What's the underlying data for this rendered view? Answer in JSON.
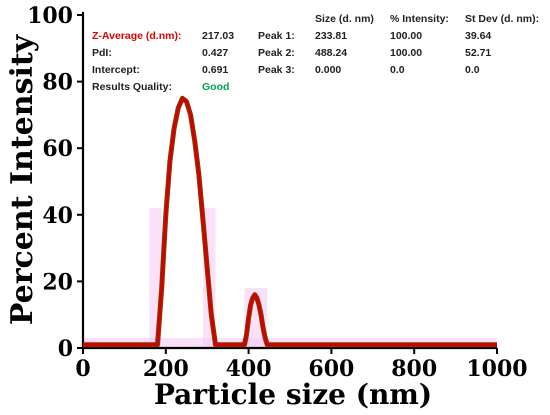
{
  "chart_data": {
    "type": "line",
    "xlabel": "Particle size (nm)",
    "ylabel": "Percent Intensity",
    "xlim": [
      0,
      1000
    ],
    "ylim": [
      0,
      100
    ],
    "x_ticks": [
      "0",
      "200",
      "400",
      "600",
      "800",
      "1000"
    ],
    "y_ticks": [
      "0",
      "20",
      "40",
      "60",
      "80",
      "100"
    ],
    "series": [
      {
        "color": "#d40000",
        "x": [
          0,
          180,
          190,
          200,
          210,
          220,
          230,
          240,
          250,
          260,
          270,
          280,
          290,
          300,
          310,
          320,
          330,
          390,
          395,
          400,
          405,
          410,
          415,
          420,
          425,
          430,
          435,
          440,
          445,
          450,
          1000
        ],
        "values": [
          1,
          1,
          18,
          40,
          56,
          66,
          72,
          75,
          74,
          70,
          62,
          52,
          38,
          24,
          10,
          1,
          1,
          1,
          4,
          9,
          13,
          15,
          16,
          15,
          13,
          10,
          6,
          3,
          1,
          1,
          1
        ]
      }
    ],
    "table_headers": [
      "Size (d. nm)",
      "% Intensity:",
      "St Dev (d. nm):"
    ],
    "info": [
      {
        "label": "Z-Average (d.nm):",
        "value": "217.03",
        "peak": "Peak 1:",
        "size": "233.81",
        "intensity": "100.00",
        "stdev": "39.64"
      },
      {
        "label": "PdI:",
        "value": "0.427",
        "peak": "Peak 2:",
        "size": "488.24",
        "intensity": "100.00",
        "stdev": "52.71"
      },
      {
        "label": "Intercept:",
        "value": "0.691",
        "peak": "Peak 3:",
        "size": "0.000",
        "intensity": "0.0",
        "stdev": "0.0"
      },
      {
        "label": "Results Quality:",
        "value": "Good"
      }
    ],
    "colors": {
      "line": "#d40000",
      "shadow": "#7a3f00",
      "highlight_label": "#e00000",
      "quality_good": "#00a651",
      "band": "#f5c8f2"
    }
  }
}
